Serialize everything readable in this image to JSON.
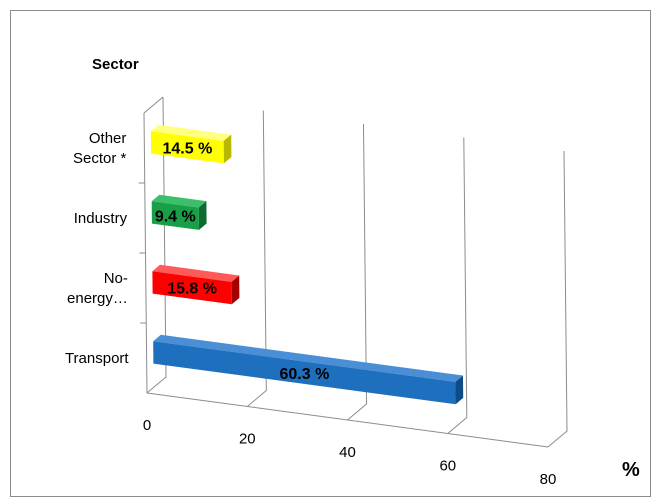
{
  "chart_data": {
    "type": "bar",
    "orientation": "horizontal",
    "three_d": true,
    "categories": [
      "Transport",
      "No-energy…",
      "Industry",
      "Other Sector *"
    ],
    "category_label_lines": [
      [
        "Transport"
      ],
      [
        "No-",
        "energy…"
      ],
      [
        "Industry"
      ],
      [
        "Other",
        "Sector *"
      ]
    ],
    "values": [
      60.3,
      15.8,
      9.4,
      14.5
    ],
    "data_labels": [
      "60.3 %",
      "15.8 %",
      "9.4 %",
      "14.5 %"
    ],
    "colors": [
      "#1f6fbf",
      "#ff0000",
      "#1a9f49",
      "#ffff00"
    ],
    "side_colors": [
      "#0f4b87",
      "#a50000",
      "#0e6b2f",
      "#b8b800"
    ],
    "top_colors": [
      "#4a8fd6",
      "#ff5a5a",
      "#3cbf6a",
      "#ffff80"
    ],
    "ylabel": "Sector",
    "xlabel": "%",
    "xticks": [
      0,
      20,
      40,
      60,
      80
    ],
    "xlim": [
      0,
      80
    ],
    "grid": true,
    "legend": "none"
  }
}
